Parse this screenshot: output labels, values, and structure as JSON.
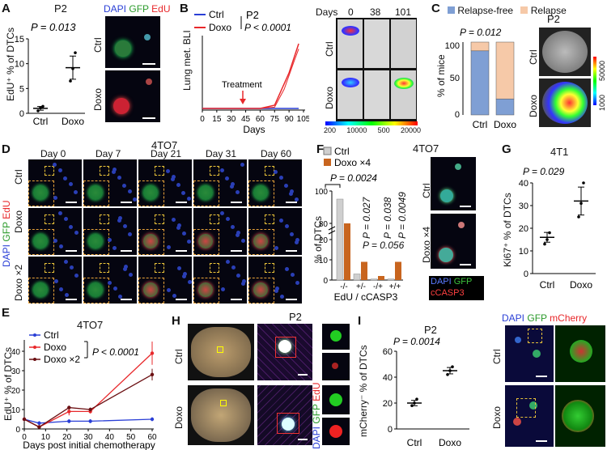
{
  "panelA": {
    "letter": "A",
    "title": "P2",
    "stat": "P = 0.013",
    "ylabel": "EdU⁺ % of DTCs",
    "xticks": [
      "Ctrl",
      "Doxo"
    ],
    "yticks": [
      "0",
      "5",
      "10",
      "15"
    ],
    "img_channels": [
      "DAPI",
      "GFP",
      "EdU"
    ],
    "img_rows": [
      "Ctrl",
      "Doxo"
    ]
  },
  "panelB": {
    "letter": "B",
    "title": "P2",
    "legend": [
      "Ctrl",
      "Doxo"
    ],
    "stat": "P < 0.0001",
    "ylabel": "Lung met. BLI",
    "xlabel": "Days",
    "xticks": [
      "0",
      "15",
      "30",
      "45",
      "60",
      "75",
      "90",
      "105"
    ],
    "annotation": "Treatment",
    "days_label": "Days",
    "days": [
      "0",
      "38",
      "101"
    ],
    "rows": [
      "Ctrl",
      "Doxo"
    ],
    "scale": [
      "200",
      "10000",
      "500",
      "20000"
    ]
  },
  "panelC": {
    "letter": "C",
    "title": "P2",
    "legend": [
      "Relapse-free",
      "Relapse"
    ],
    "stat": "P = 0.012",
    "ylabel": "% of mice",
    "yticks": [
      "0",
      "50",
      "100"
    ],
    "xticks": [
      "Ctrl",
      "Doxo"
    ],
    "rows": [
      "Ctrl",
      "Doxo"
    ],
    "scale": [
      "50000",
      "1000"
    ]
  },
  "panelD": {
    "letter": "D",
    "title": "4TO7",
    "cols": [
      "Day 0",
      "Day 7",
      "Day 21",
      "Day 31",
      "Day 60"
    ],
    "rows": [
      "Ctrl",
      "Doxo",
      "Doxo ×2"
    ],
    "side": [
      "DAPI",
      "GFP",
      "EdU"
    ]
  },
  "panelE": {
    "letter": "E",
    "title": "4TO7",
    "legend": [
      "Ctrl",
      "Doxo",
      "Doxo ×2"
    ],
    "stat": "P < 0.0001",
    "ylabel": "EdU⁺ % of DTCs",
    "xlabel": "Days post initial chemotherapy",
    "xticks": [
      "0",
      "10",
      "20",
      "30",
      "40",
      "50",
      "60"
    ],
    "yticks": [
      "0",
      "10",
      "20",
      "30",
      "40"
    ]
  },
  "panelF": {
    "letter": "F",
    "title": "4TO7",
    "legend": [
      "Ctrl",
      "Doxo ×4"
    ],
    "stats": [
      "P = 0.0024",
      "P = 0.027",
      "P = 0.038",
      "P = 0.0049",
      "P = 0.056"
    ],
    "ylabel": "% of DTCs",
    "yticks": [
      "0",
      "10",
      "20",
      "80",
      "100"
    ],
    "xticks": [
      "-/-",
      "+/-",
      "-/+",
      "+/+"
    ],
    "xlabel": "EdU / cCASP3",
    "rows": [
      "Ctrl",
      "Doxo ×4"
    ],
    "channels": [
      "DAPI",
      "GFP",
      "cCASP3",
      "EdU"
    ]
  },
  "panelG": {
    "letter": "G",
    "title": "4T1",
    "stat": "P = 0.029",
    "ylabel": "Ki67⁺ % of DTCs",
    "yticks": [
      "0",
      "10",
      "20",
      "30",
      "40"
    ],
    "xticks": [
      "Ctrl",
      "Doxo"
    ]
  },
  "panelH": {
    "letter": "H",
    "title": "P2",
    "rows": [
      "Ctrl",
      "Doxo"
    ],
    "side": [
      "DAPI",
      "GFP",
      "EdU"
    ]
  },
  "panelI": {
    "letter": "I",
    "title": "P2",
    "stat": "P = 0.0014",
    "ylabel": "mCherry⁻ % of DTCs",
    "yticks": [
      "0",
      "20",
      "40",
      "60"
    ],
    "xticks": [
      "Ctrl",
      "Doxo"
    ],
    "channels": [
      "DAPI",
      "GFP",
      "mCherry"
    ],
    "rows": [
      "Ctrl",
      "Doxo"
    ]
  },
  "colors": {
    "ctrl_blue": "#2a3fd6",
    "doxo_red": "#e8282b",
    "doxo2_dark": "#6b0f12",
    "relapse_free": "#7f9fd4",
    "relapse": "#f6c9a8",
    "bar_gray": "#cfcfcf",
    "bar_orange": "#c8651f"
  },
  "chart_data": [
    {
      "panel": "A",
      "type": "scatter",
      "categories": [
        "Ctrl",
        "Doxo"
      ],
      "means": [
        1.0,
        9.2
      ],
      "points": [
        [
          0.5,
          1.1,
          1.4
        ],
        [
          6.5,
          9.0,
          12.2
        ]
      ],
      "ylim": [
        0,
        15
      ]
    },
    {
      "panel": "B",
      "type": "line",
      "x": [
        0,
        15,
        30,
        45,
        60,
        75,
        90,
        100
      ],
      "series": [
        {
          "name": "Ctrl",
          "values": [
            0,
            0,
            0,
            0,
            0,
            0,
            0,
            0
          ]
        },
        {
          "name": "Doxo",
          "values": [
            0,
            0,
            0,
            0,
            0,
            0.05,
            0.55,
            1.0
          ]
        }
      ],
      "xlim": [
        0,
        105
      ]
    },
    {
      "panel": "C",
      "type": "bar",
      "categories": [
        "Ctrl",
        "Doxo"
      ],
      "series": [
        {
          "name": "Relapse-free",
          "values": [
            88,
            22
          ]
        },
        {
          "name": "Relapse",
          "values": [
            12,
            78
          ]
        }
      ],
      "ylim": [
        0,
        100
      ]
    },
    {
      "panel": "E",
      "type": "line",
      "x": [
        0,
        7,
        21,
        31,
        60
      ],
      "series": [
        {
          "name": "Ctrl",
          "values": [
            5,
            3,
            4,
            4,
            5
          ]
        },
        {
          "name": "Doxo",
          "values": [
            5,
            1,
            9,
            9,
            39
          ]
        },
        {
          "name": "Doxo ×2",
          "values": [
            5,
            1,
            11,
            10,
            28
          ]
        }
      ],
      "ylim": [
        0,
        45
      ]
    },
    {
      "panel": "F",
      "type": "bar",
      "categories": [
        "-/-",
        "+/-",
        "-/+",
        "+/+"
      ],
      "series": [
        {
          "name": "Ctrl",
          "values": [
            95,
            3,
            0.5,
            0.5
          ]
        },
        {
          "name": "Doxo ×4",
          "values": [
            80,
            9,
            2,
            9
          ]
        }
      ]
    },
    {
      "panel": "G",
      "type": "scatter",
      "categories": [
        "Ctrl",
        "Doxo"
      ],
      "means": [
        16,
        32
      ],
      "points": [
        [
          13,
          15,
          18
        ],
        [
          25,
          31,
          40
        ]
      ],
      "ylim": [
        0,
        40
      ]
    },
    {
      "panel": "I",
      "type": "scatter",
      "categories": [
        "Ctrl",
        "Doxo"
      ],
      "means": [
        20,
        45
      ],
      "points": [
        [
          18,
          20,
          23
        ],
        [
          42,
          45,
          48
        ]
      ],
      "ylim": [
        0,
        60
      ]
    }
  ]
}
